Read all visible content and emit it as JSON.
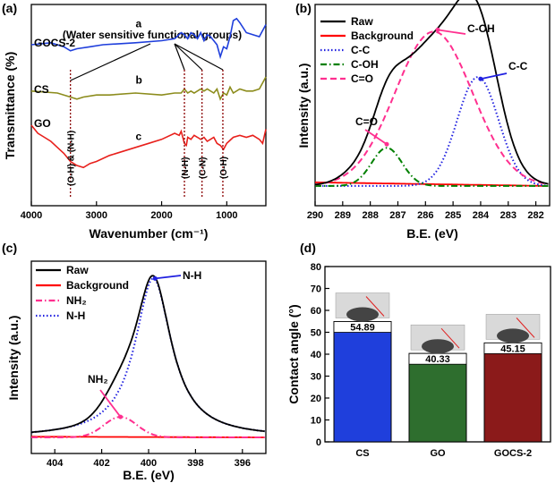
{
  "panel_letters": [
    "(a)",
    "(b)",
    "(c)",
    "(d)"
  ],
  "chart_data": [
    {
      "panel": "a",
      "type": "line",
      "xlabel": "Wavenumber (cm⁻¹)",
      "ylabel": "Transmittance (%)",
      "xlim": [
        4000,
        400
      ],
      "xticks": [
        4000,
        3000,
        2000,
        1000
      ],
      "annotation_top": "(Water sensitive functional groups)",
      "series": [
        {
          "name": "GOCS-2",
          "letter": "a",
          "color": "#1f3fdc",
          "x": [
            4000,
            3700,
            3500,
            3400,
            3300,
            3100,
            2900,
            2400,
            2000,
            1800,
            1700,
            1650,
            1600,
            1550,
            1500,
            1450,
            1400,
            1350,
            1300,
            1250,
            1200,
            1150,
            1100,
            1050,
            1000,
            950,
            900,
            850,
            800,
            700,
            600,
            500,
            400
          ],
          "y": [
            0.8,
            0.81,
            0.79,
            0.77,
            0.78,
            0.79,
            0.8,
            0.81,
            0.82,
            0.83,
            0.86,
            0.85,
            0.83,
            0.86,
            0.85,
            0.83,
            0.86,
            0.82,
            0.85,
            0.84,
            0.82,
            0.8,
            0.74,
            0.79,
            0.78,
            0.84,
            0.92,
            0.93,
            0.91,
            0.86,
            0.85,
            0.84,
            0.9
          ]
        },
        {
          "name": "CS",
          "letter": "b",
          "color": "#8c8c1c",
          "x": [
            4000,
            3600,
            3400,
            3300,
            3200,
            3000,
            2800,
            2400,
            2000,
            1800,
            1700,
            1650,
            1600,
            1550,
            1500,
            1400,
            1350,
            1300,
            1200,
            1150,
            1100,
            1050,
            1000,
            950,
            900,
            800,
            700,
            600,
            500,
            400
          ],
          "y": [
            0.57,
            0.56,
            0.54,
            0.53,
            0.54,
            0.55,
            0.55,
            0.56,
            0.55,
            0.56,
            0.56,
            0.58,
            0.56,
            0.57,
            0.56,
            0.58,
            0.57,
            0.58,
            0.56,
            0.58,
            0.53,
            0.56,
            0.55,
            0.59,
            0.56,
            0.58,
            0.57,
            0.57,
            0.58,
            0.64
          ]
        },
        {
          "name": "GO",
          "letter": "c",
          "color": "#e8201c",
          "x": [
            4000,
            3900,
            3800,
            3700,
            3600,
            3500,
            3400,
            3300,
            3200,
            3100,
            3000,
            2800,
            2600,
            2400,
            2200,
            2000,
            1800,
            1730,
            1700,
            1650,
            1620,
            1600,
            1550,
            1500,
            1450,
            1400,
            1350,
            1300,
            1250,
            1200,
            1150,
            1100,
            1050,
            1000,
            900,
            800,
            700,
            600,
            500,
            450,
            400
          ],
          "y": [
            0.4,
            0.36,
            0.34,
            0.32,
            0.29,
            0.26,
            0.22,
            0.2,
            0.19,
            0.21,
            0.22,
            0.25,
            0.27,
            0.29,
            0.31,
            0.33,
            0.36,
            0.35,
            0.37,
            0.31,
            0.3,
            0.34,
            0.33,
            0.35,
            0.34,
            0.33,
            0.34,
            0.32,
            0.33,
            0.34,
            0.31,
            0.3,
            0.28,
            0.31,
            0.34,
            0.35,
            0.34,
            0.35,
            0.33,
            0.31,
            0.38
          ]
        }
      ],
      "annotations": [
        {
          "text": "(O-H) & (N-H)",
          "x": 3400
        },
        {
          "text": "(N-H)",
          "x": 1650
        },
        {
          "text": "(C-N)",
          "x": 1380
        },
        {
          "text": "(O-H)",
          "x": 1060
        }
      ]
    },
    {
      "panel": "b",
      "type": "line",
      "xlabel": "B.E. (eV)",
      "ylabel": "Intensity (a.u.)",
      "xlim": [
        290,
        281.5
      ],
      "xticks": [
        290,
        289,
        288,
        287,
        286,
        285,
        284,
        283,
        282
      ],
      "legend": [
        {
          "label": "Raw",
          "color": "#000000",
          "style": "solid"
        },
        {
          "label": "Background",
          "color": "#ff0000",
          "style": "solid"
        },
        {
          "label": "C-C",
          "color": "#2020e0",
          "style": "dotted"
        },
        {
          "label": "C-OH",
          "color": "#008000",
          "style": "dashdot"
        },
        {
          "label": "C=O",
          "color": "#ff2f8f",
          "style": "dashed"
        }
      ],
      "peaks": [
        {
          "name": "C-C",
          "center": 284.1,
          "height": 0.6,
          "width": 0.75
        },
        {
          "name": "C-OH",
          "center": 287.4,
          "height": 0.21,
          "width": 0.55
        },
        {
          "name": "C=O",
          "center": 285.7,
          "height": 0.85,
          "width": 1.4
        }
      ],
      "annotations": [
        {
          "text": "C-OH",
          "color": "#ff2f8f"
        },
        {
          "text": "C-C",
          "color": "#2020e0"
        },
        {
          "text": "C=O",
          "color": "#ff2f8f"
        }
      ]
    },
    {
      "panel": "c",
      "type": "line",
      "xlabel": "B.E. (eV)",
      "ylabel": "Intensity (a.u.)",
      "xlim": [
        405,
        395
      ],
      "xticks": [
        404,
        402,
        400,
        398,
        396
      ],
      "legend": [
        {
          "label": "Raw",
          "color": "#000000",
          "style": "solid"
        },
        {
          "label": "Background",
          "color": "#ff0000",
          "style": "solid"
        },
        {
          "label": "NH₂",
          "color": "#ff2f8f",
          "style": "dashdot"
        },
        {
          "label": "N-H",
          "color": "#2020e0",
          "style": "dotted"
        }
      ],
      "peaks": [
        {
          "name": "NH2",
          "center": 401.2,
          "height": 0.12,
          "width": 0.7
        },
        {
          "name": "N-H",
          "center": 399.8,
          "height": 0.93,
          "width": 0.95
        }
      ],
      "annotations": [
        {
          "text": "N-H",
          "color": "#2020e0"
        },
        {
          "text": "NH₂",
          "color": "#ff2f8f"
        }
      ]
    },
    {
      "panel": "d",
      "type": "bar",
      "ylabel": "Contact angle (°)",
      "ylim": [
        0,
        80
      ],
      "yticks": [
        0,
        10,
        20,
        30,
        40,
        50,
        60,
        70,
        80
      ],
      "categories": [
        "CS",
        "GO",
        "GOCS-2"
      ],
      "values": [
        54.89,
        40.33,
        45.15
      ],
      "value_labels": [
        "54.89",
        "40.33",
        "45.15"
      ],
      "colors": [
        "#1f3fdc",
        "#2e6e2e",
        "#8b1a1a"
      ]
    }
  ]
}
